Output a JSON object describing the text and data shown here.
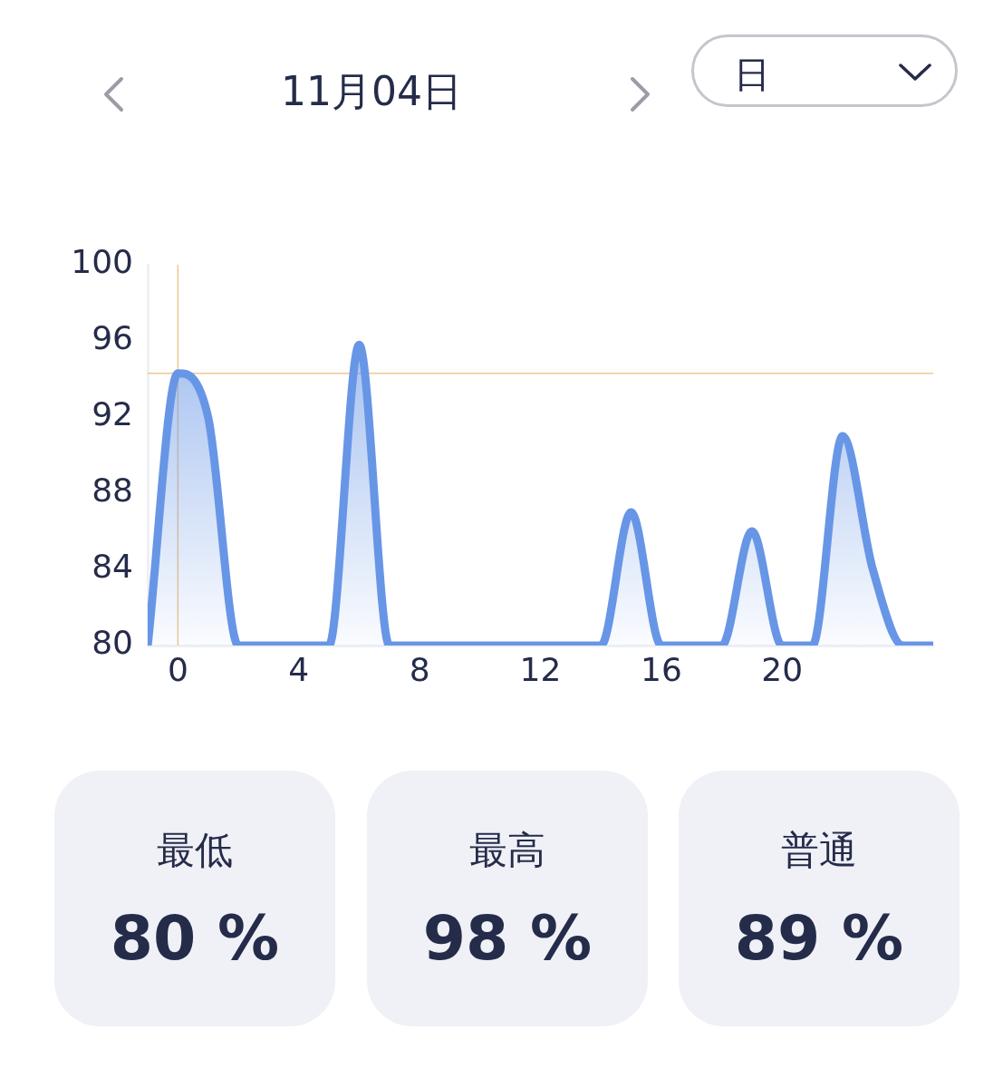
{
  "chart_data": {
    "type": "area",
    "title": "11月04日",
    "x": [
      -1,
      0,
      1,
      2,
      3,
      4,
      5,
      6,
      7,
      8,
      9,
      10,
      11,
      12,
      13,
      14,
      15,
      16,
      17,
      18,
      19,
      20,
      21,
      22,
      23,
      24,
      25
    ],
    "series": [
      {
        "color": "#6896e6",
        "values": [
          80,
          94.3,
          92,
          80,
          80,
          80,
          80,
          95.8,
          80,
          80,
          80,
          80,
          80,
          80,
          80,
          80,
          87,
          80,
          80,
          80,
          86,
          80,
          80,
          91,
          84,
          80,
          80
        ]
      }
    ],
    "xlim": [
      -1,
      25
    ],
    "xticks": [
      0,
      4,
      8,
      12,
      16,
      20
    ],
    "ylim": [
      80,
      100
    ],
    "yticks": [
      80,
      84,
      88,
      92,
      96,
      100
    ],
    "grid": false,
    "legend": false,
    "marker": "none",
    "line_style": "solid",
    "ref_lines": [
      {
        "axis": "x",
        "value": 0,
        "color": "#ecc992"
      },
      {
        "axis": "y",
        "value": 94.3,
        "color": "#ecc992"
      }
    ],
    "annotations": [
      "日",
      "最低",
      "80 %",
      "最高",
      "98 %",
      "普通",
      "89 %"
    ]
  }
}
